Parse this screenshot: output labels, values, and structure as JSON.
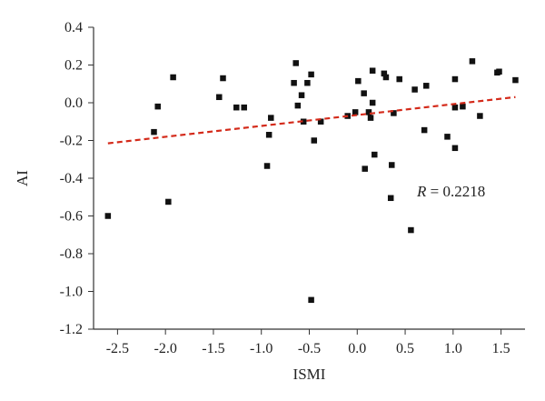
{
  "chart_data": {
    "type": "scatter",
    "title": "",
    "xlabel": "ISMI",
    "ylabel": "AI",
    "xlim": [
      -2.75,
      1.75
    ],
    "ylim": [
      -1.2,
      0.4
    ],
    "x_ticks": [
      -2.5,
      -2.0,
      -1.5,
      -1.0,
      -0.5,
      0.0,
      0.5,
      1.0,
      1.5
    ],
    "y_ticks": [
      0.4,
      0.2,
      0.0,
      -0.2,
      -0.4,
      -0.6,
      -0.8,
      -1.0,
      -1.2
    ],
    "x_tick_labels": [
      "-2.5",
      "-2.0",
      "-1.5",
      "-1.0",
      "-0.5",
      "0.0",
      "0.5",
      "1.0",
      "1.5"
    ],
    "y_tick_labels": [
      "0.4",
      "0.2",
      "0.0",
      "-0.2",
      "-0.4",
      "-0.6",
      "-0.8",
      "-1.0",
      "-1.2"
    ],
    "grid": false,
    "marker_color": "#111111",
    "trendline": {
      "style": "dashed",
      "color": "#d42a1a",
      "x": [
        -2.6,
        1.65
      ],
      "y": [
        -0.215,
        0.03
      ]
    },
    "annotation": {
      "variable": "R",
      "text": " = 0.2218"
    },
    "points": [
      {
        "x": -2.6,
        "y": -0.6
      },
      {
        "x": -2.12,
        "y": -0.155
      },
      {
        "x": -2.08,
        "y": -0.02
      },
      {
        "x": -1.97,
        "y": -0.525
      },
      {
        "x": -1.92,
        "y": 0.135
      },
      {
        "x": -1.44,
        "y": 0.03
      },
      {
        "x": -1.4,
        "y": 0.13
      },
      {
        "x": -1.26,
        "y": -0.025
      },
      {
        "x": -1.18,
        "y": -0.025
      },
      {
        "x": -0.94,
        "y": -0.335
      },
      {
        "x": -0.92,
        "y": -0.17
      },
      {
        "x": -0.9,
        "y": -0.08
      },
      {
        "x": -0.66,
        "y": 0.105
      },
      {
        "x": -0.64,
        "y": 0.21
      },
      {
        "x": -0.62,
        "y": -0.015
      },
      {
        "x": -0.58,
        "y": 0.04
      },
      {
        "x": -0.56,
        "y": -0.1
      },
      {
        "x": -0.52,
        "y": 0.105
      },
      {
        "x": -0.48,
        "y": 0.15
      },
      {
        "x": -0.45,
        "y": -0.2
      },
      {
        "x": -0.48,
        "y": -1.045
      },
      {
        "x": -0.38,
        "y": -0.1
      },
      {
        "x": -0.1,
        "y": -0.07
      },
      {
        "x": -0.02,
        "y": -0.05
      },
      {
        "x": 0.01,
        "y": 0.115
      },
      {
        "x": 0.07,
        "y": 0.05
      },
      {
        "x": 0.08,
        "y": -0.35
      },
      {
        "x": 0.12,
        "y": -0.05
      },
      {
        "x": 0.14,
        "y": -0.08
      },
      {
        "x": 0.16,
        "y": 0.0
      },
      {
        "x": 0.16,
        "y": 0.17
      },
      {
        "x": 0.18,
        "y": -0.275
      },
      {
        "x": 0.28,
        "y": 0.155
      },
      {
        "x": 0.3,
        "y": 0.135
      },
      {
        "x": 0.35,
        "y": -0.505
      },
      {
        "x": 0.36,
        "y": -0.33
      },
      {
        "x": 0.38,
        "y": -0.055
      },
      {
        "x": 0.44,
        "y": 0.125
      },
      {
        "x": 0.56,
        "y": -0.675
      },
      {
        "x": 0.6,
        "y": 0.07
      },
      {
        "x": 0.7,
        "y": -0.145
      },
      {
        "x": 0.72,
        "y": 0.09
      },
      {
        "x": 0.94,
        "y": -0.18
      },
      {
        "x": 1.02,
        "y": 0.125
      },
      {
        "x": 1.02,
        "y": -0.025
      },
      {
        "x": 1.02,
        "y": -0.24
      },
      {
        "x": 1.1,
        "y": -0.02
      },
      {
        "x": 1.2,
        "y": 0.22
      },
      {
        "x": 1.28,
        "y": -0.07
      },
      {
        "x": 1.46,
        "y": 0.16
      },
      {
        "x": 1.48,
        "y": 0.165
      },
      {
        "x": 1.65,
        "y": 0.12
      }
    ]
  }
}
